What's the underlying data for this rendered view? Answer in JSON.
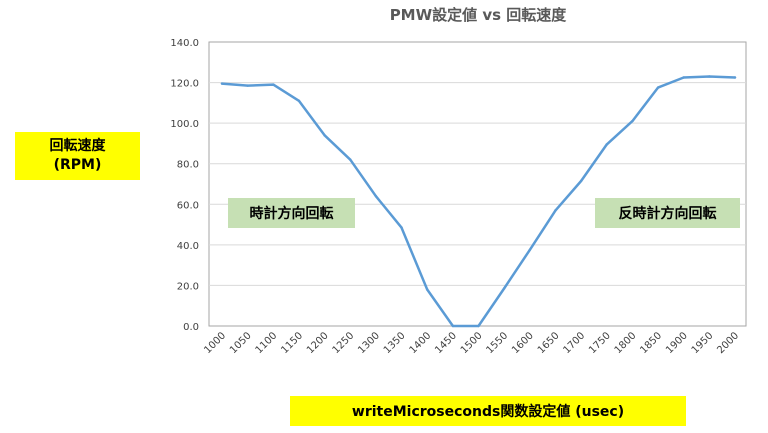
{
  "chart_data": {
    "type": "line",
    "title": "PMW設定値 vs 回転速度",
    "ylabel_line1": "回転速度",
    "ylabel_line2": "(RPM)",
    "xlabel": "writeMicroseconds関数設定値 (usec)",
    "ylim": [
      0,
      140
    ],
    "yticks": [
      "0.0",
      "20.0",
      "40.0",
      "60.0",
      "80.0",
      "100.0",
      "120.0",
      "140.0"
    ],
    "x": [
      1000,
      1050,
      1100,
      1150,
      1200,
      1250,
      1300,
      1350,
      1400,
      1450,
      1500,
      1550,
      1600,
      1650,
      1700,
      1750,
      1800,
      1850,
      1900,
      1950,
      2000
    ],
    "series": [
      {
        "values": [
          119.5,
          118.5,
          119,
          111,
          94,
          82,
          64,
          48.5,
          18,
          0,
          0,
          18.5,
          37.5,
          57,
          71.5,
          89.5,
          101,
          117.5,
          122.5,
          123,
          122.5
        ],
        "color": "#5b9bd5"
      }
    ],
    "grid": true,
    "annotations": {
      "left": "時計方向回転",
      "right": "反時計方向回転"
    }
  }
}
